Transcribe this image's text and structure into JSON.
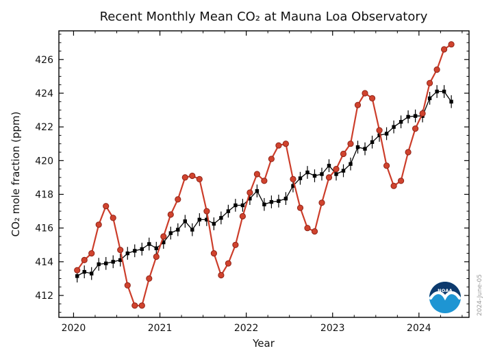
{
  "watermark": "2024-June-05",
  "logo": {
    "name": "NOAA",
    "text": "NOAA",
    "navy": "#0d3a6d",
    "blue": "#1e95d3"
  },
  "colors": {
    "monthly_line": "#cc3d2a",
    "monthly_marker_fill": "#d0432e",
    "monthly_marker_edge": "#8f2317",
    "trend_line": "#000000",
    "axis": "#000000",
    "watermark_text": "#999999"
  },
  "chart_data": {
    "type": "line",
    "title": "Recent Monthly Mean CO₂ at Mauna Loa Observatory",
    "xlabel": "Year",
    "ylabel": "CO₂ mole fraction (ppm)",
    "xlim": [
      2019.83,
      2024.58
    ],
    "ylim": [
      410.7,
      427.7
    ],
    "x_ticks": [
      2020,
      2021,
      2022,
      2023,
      2024
    ],
    "x_tick_labels": [
      "2020",
      "2021",
      "2022",
      "2023",
      "2024"
    ],
    "x_minor_step": 0.25,
    "y_ticks": [
      412,
      414,
      416,
      418,
      420,
      422,
      424,
      426
    ],
    "y_tick_labels": [
      "412",
      "414",
      "416",
      "418",
      "420",
      "422",
      "424",
      "426"
    ],
    "y_minor_step": 0.5,
    "grid": false,
    "legend_position": "none",
    "frame": {
      "l": 86,
      "t": 45,
      "r": 685,
      "b": 463
    },
    "start_year": 2020,
    "months_per_point": 1,
    "series": [
      {
        "name": "trend_deseasonalized",
        "color": "#000000",
        "marker": "square",
        "error": 0.38,
        "values": [
          413.15,
          413.4,
          413.3,
          413.85,
          413.9,
          414.0,
          414.1,
          414.5,
          414.65,
          414.75,
          415.05,
          414.8,
          415.15,
          415.7,
          415.9,
          416.4,
          415.9,
          416.5,
          416.5,
          416.25,
          416.6,
          417.0,
          417.35,
          417.35,
          417.75,
          418.2,
          417.4,
          417.55,
          417.6,
          417.75,
          418.5,
          418.95,
          419.3,
          419.1,
          419.2,
          419.7,
          419.2,
          419.4,
          419.8,
          420.8,
          420.7,
          421.1,
          421.5,
          421.6,
          422.0,
          422.3,
          422.6,
          422.65,
          422.65,
          423.7,
          424.1,
          424.1,
          423.5
        ]
      },
      {
        "name": "monthly_mean",
        "color": "#cc3d2a",
        "marker": "circle",
        "error": 0,
        "values": [
          413.5,
          414.1,
          414.5,
          416.2,
          417.3,
          416.6,
          414.7,
          412.6,
          411.4,
          411.4,
          413.0,
          414.3,
          415.5,
          416.8,
          417.7,
          419.0,
          419.1,
          418.9,
          417.0,
          414.5,
          413.2,
          413.9,
          415.0,
          416.7,
          418.1,
          419.2,
          418.8,
          420.1,
          420.9,
          421.0,
          418.9,
          417.2,
          416.0,
          415.8,
          417.5,
          419.0,
          419.5,
          420.4,
          421.0,
          423.3,
          424.0,
          423.7,
          421.8,
          419.7,
          418.5,
          418.8,
          420.5,
          421.9,
          422.8,
          424.6,
          425.4,
          426.6,
          426.9
        ]
      }
    ]
  }
}
